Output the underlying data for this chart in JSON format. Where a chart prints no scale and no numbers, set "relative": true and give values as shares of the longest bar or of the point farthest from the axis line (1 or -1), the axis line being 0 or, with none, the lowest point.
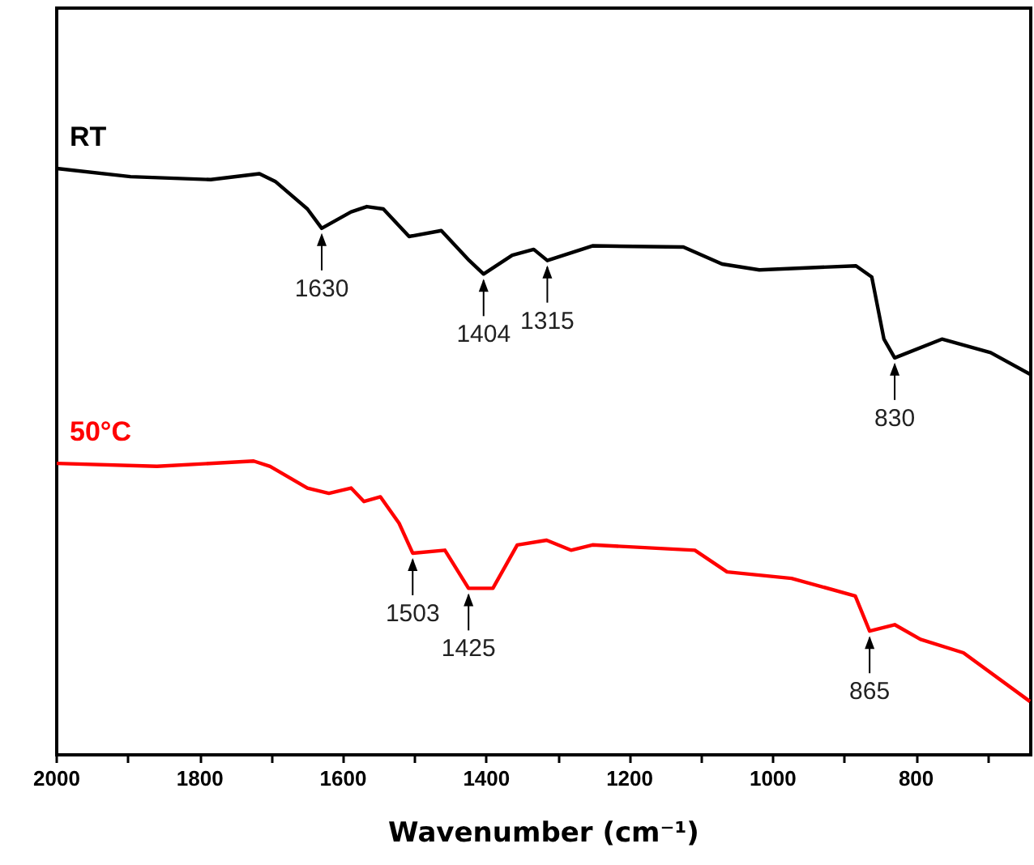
{
  "chart_data": {
    "type": "line",
    "relative": true,
    "xlabel": "Wavenumber (cm⁻¹)",
    "xlim": [
      2000,
      640
    ],
    "xticks": [
      2000,
      {
        "value": 1900,
        "label": null
      },
      1800,
      {
        "value": 1700,
        "label": null
      },
      1600,
      {
        "value": 1500,
        "label": null
      },
      1400,
      {
        "value": 1300,
        "label": null
      },
      1200,
      {
        "value": 1100,
        "label": null
      },
      1000,
      {
        "value": 900,
        "label": null
      },
      800,
      {
        "value": 700,
        "label": null
      }
    ],
    "legend": false,
    "marker": "none",
    "line_style": "solid",
    "grid": false,
    "series": [
      {
        "name": "RT",
        "color": "#000000",
        "x": [
          2000,
          1897,
          1785,
          1717,
          1695,
          1650,
          1630,
          1589,
          1567,
          1544,
          1508,
          1463,
          1424,
          1404,
          1364,
          1334,
          1315,
          1252,
          1125,
          1071,
          1019,
          884,
          862,
          845,
          830,
          764,
          696,
          641
        ],
        "values": [
          1,
          0.986,
          0.981,
          0.991,
          0.978,
          0.931,
          0.898,
          0.926,
          0.935,
          0.931,
          0.884,
          0.894,
          0.843,
          0.82,
          0.852,
          0.862,
          0.843,
          0.868,
          0.866,
          0.837,
          0.827,
          0.834,
          0.815,
          0.709,
          0.677,
          0.709,
          0.686,
          0.649
        ]
      },
      {
        "name": "50°C",
        "color": "#ff0000",
        "x": [
          2000,
          1860,
          1725,
          1702,
          1650,
          1620,
          1589,
          1571,
          1548,
          1522,
          1503,
          1458,
          1425,
          1391,
          1357,
          1316,
          1282,
          1252,
          1109,
          1064,
          974,
          885,
          865,
          830,
          794,
          734,
          641
        ],
        "values": [
          0.497,
          0.492,
          0.501,
          0.492,
          0.455,
          0.446,
          0.455,
          0.432,
          0.44,
          0.395,
          0.344,
          0.349,
          0.284,
          0.284,
          0.358,
          0.366,
          0.349,
          0.358,
          0.349,
          0.312,
          0.301,
          0.271,
          0.211,
          0.222,
          0.197,
          0.174,
          0.091
        ]
      }
    ],
    "annotations": [
      {
        "text": "1630",
        "x": 1630,
        "y": 0.898
      },
      {
        "text": "1404",
        "x": 1404,
        "y": 0.82
      },
      {
        "text": "1315",
        "x": 1315,
        "y": 0.843
      },
      {
        "text": "830",
        "x": 830,
        "y": 0.677
      },
      {
        "text": "1503",
        "x": 1503,
        "y": 0.344
      },
      {
        "text": "1425",
        "x": 1425,
        "y": 0.284
      },
      {
        "text": "865",
        "x": 865,
        "y": 0.211
      }
    ]
  }
}
